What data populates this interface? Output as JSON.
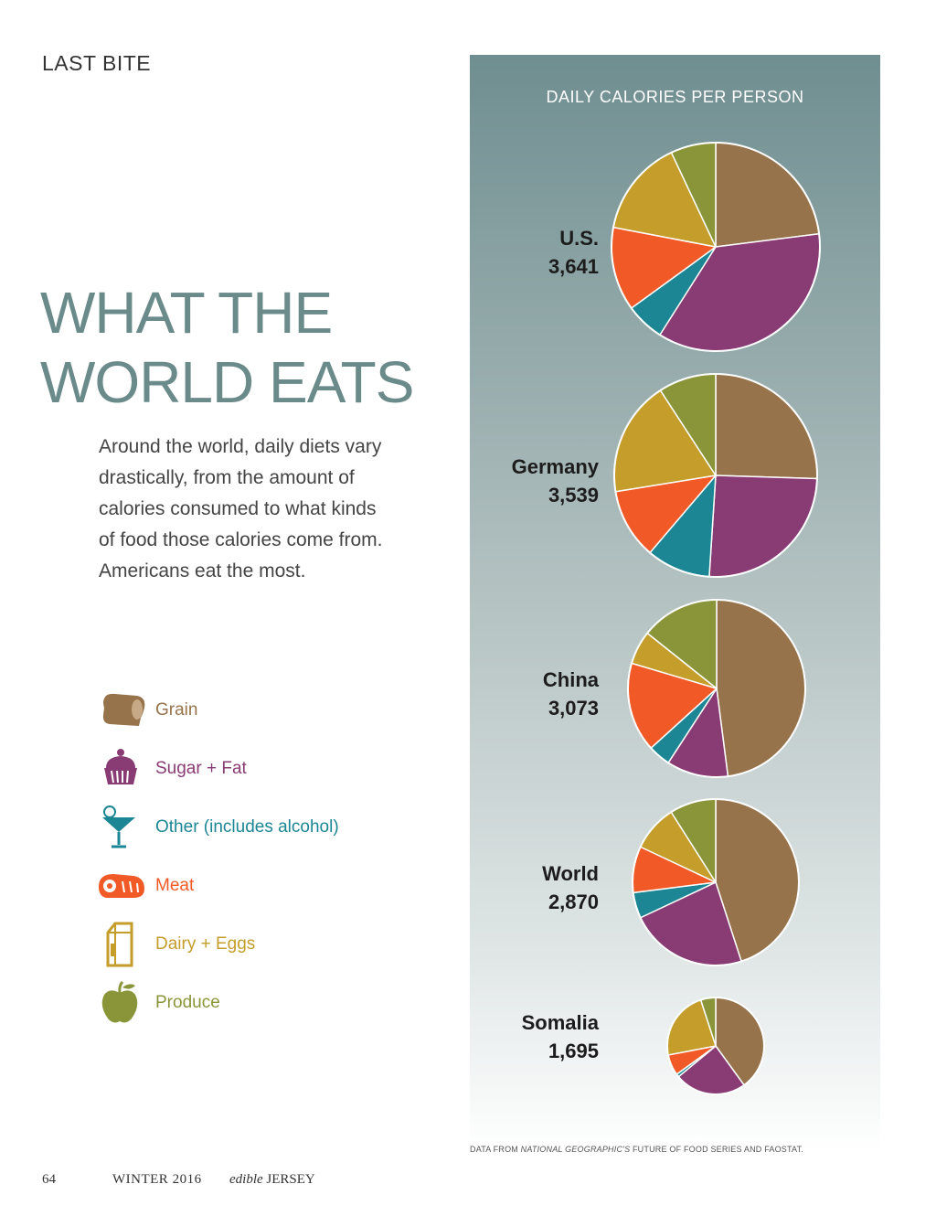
{
  "header": {
    "section": "LAST BITE"
  },
  "title": {
    "line1": "WHAT THE",
    "line2": "WORLD EATS"
  },
  "intro": {
    "lines": [
      "Around the world, daily diets vary",
      "drastically, from the amount of",
      "calories consumed to what kinds",
      "of food those calories come from.",
      "Americans eat the most."
    ]
  },
  "colors": {
    "grain": "#96734a",
    "sugar_fat": "#893b74",
    "other": "#1c8694",
    "meat": "#f15a27",
    "dairy_eggs": "#c49d2a",
    "produce": "#8a953a"
  },
  "legend": [
    {
      "key": "grain",
      "label": "Grain",
      "icon": "bread-icon"
    },
    {
      "key": "sugar_fat",
      "label": "Sugar + Fat",
      "icon": "cupcake-icon"
    },
    {
      "key": "other",
      "label": "Other (includes alcohol)",
      "icon": "cocktail-icon"
    },
    {
      "key": "meat",
      "label": "Meat",
      "icon": "ham-icon"
    },
    {
      "key": "dairy_eggs",
      "label": "Dairy + Eggs",
      "icon": "milk-carton-icon"
    },
    {
      "key": "produce",
      "label": "Produce",
      "icon": "apple-icon"
    }
  ],
  "chart_data": {
    "type": "pie",
    "title": "DAILY CALORIES PER PERSON",
    "categories": [
      "Grain",
      "Sugar + Fat",
      "Other (includes alcohol)",
      "Meat",
      "Dairy + Eggs",
      "Produce"
    ],
    "series": [
      {
        "name": "U.S.",
        "total": "3,641",
        "values": [
          23,
          36,
          6,
          13,
          15,
          7
        ]
      },
      {
        "name": "Germany",
        "total": "3,539",
        "values": [
          25,
          25,
          10,
          11,
          18,
          9
        ]
      },
      {
        "name": "China",
        "total": "3,073",
        "values": [
          47,
          11,
          4,
          16,
          6,
          14
        ]
      },
      {
        "name": "World",
        "total": "2,870",
        "values": [
          45,
          23,
          5,
          9,
          9,
          9
        ]
      },
      {
        "name": "Somalia",
        "total": "1,695",
        "values": [
          40,
          24,
          1,
          7,
          23,
          5
        ]
      }
    ]
  },
  "source": {
    "prefix": "DATA FROM ",
    "emphasis": "NATIONAL GEOGRAPHIC'S",
    "suffix": " FUTURE OF FOOD SERIES AND FAOSTAT."
  },
  "footer": {
    "page": "64",
    "issue": "WINTER 2016",
    "magazine_a": "edible",
    "magazine_b": "JERSEY"
  }
}
